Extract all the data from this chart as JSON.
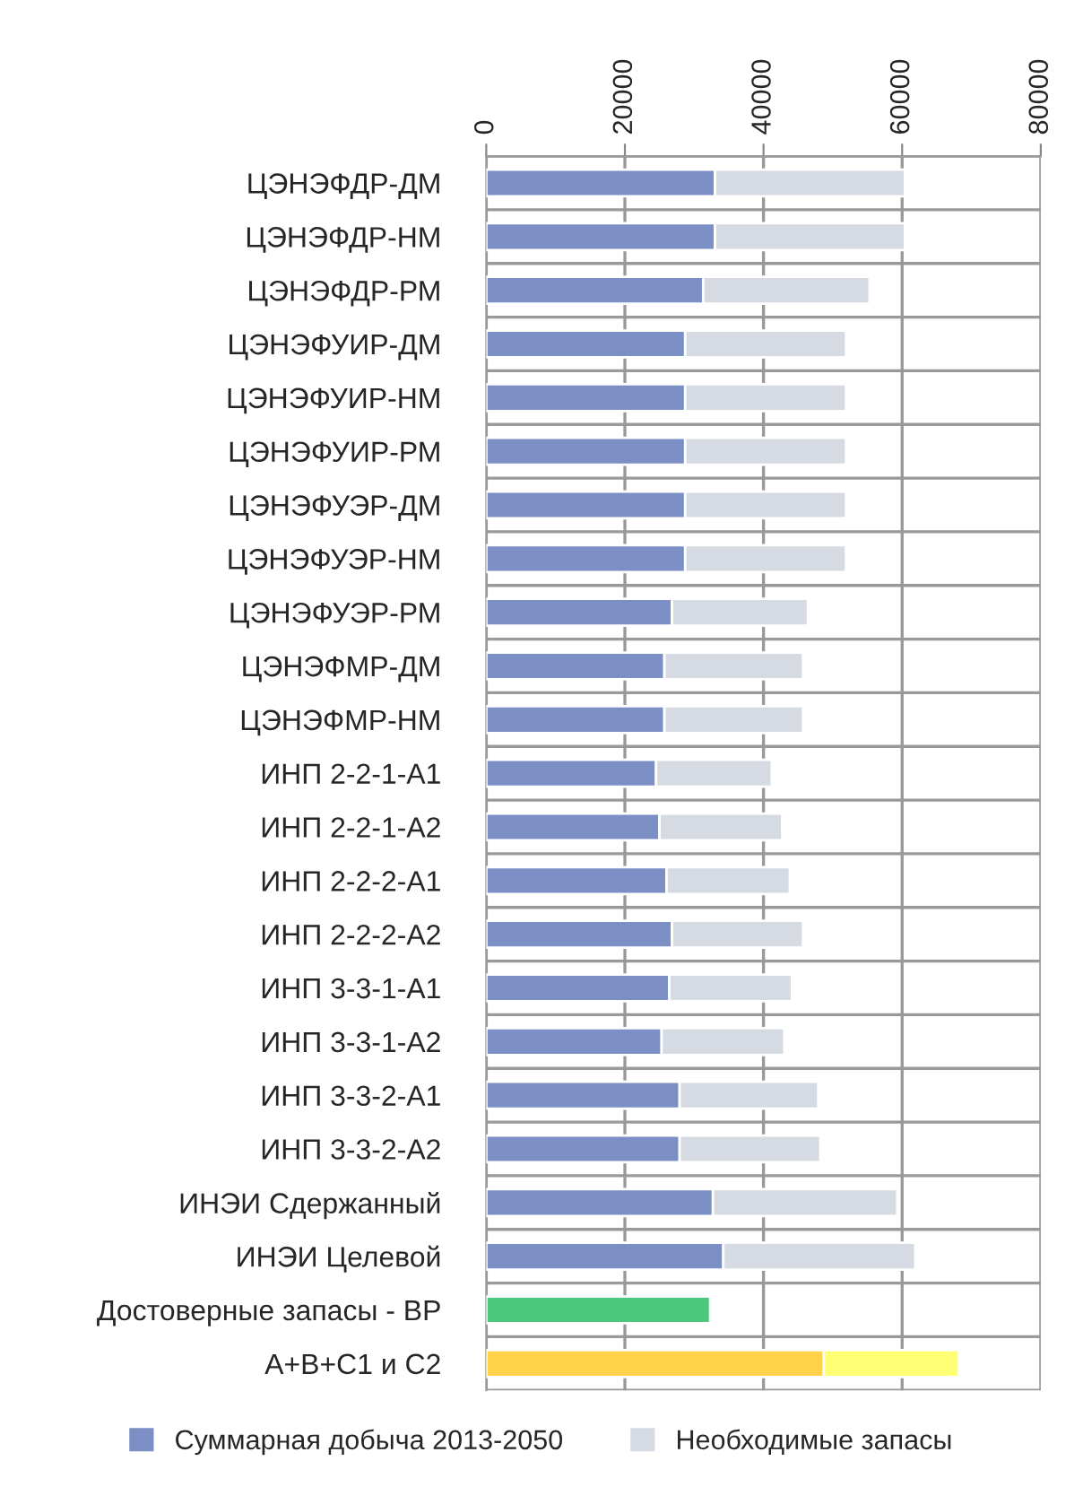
{
  "chart_data": {
    "type": "bar",
    "orientation": "horizontal",
    "stacked": true,
    "categories": [
      "ЦЭНЭФДР-ДМ",
      "ЦЭНЭФДР-НМ",
      "ЦЭНЭФДР-РМ",
      "ЦЭНЭФУИР-ДМ",
      "ЦЭНЭФУИР-НМ",
      "ЦЭНЭФУИР-РМ",
      "ЦЭНЭФУЭР-ДМ",
      "ЦЭНЭФУЭР-НМ",
      "ЦЭНЭФУЭР-РМ",
      "ЦЭНЭФМР-ДМ",
      "ЦЭНЭФМР-НМ",
      "ИНП 2-2-1-А1",
      "ИНП 2-2-1-А2",
      "ИНП 2-2-2-А1",
      "ИНП 2-2-2-А2",
      "ИНП 3-3-1-А1",
      "ИНП 3-3-1-А2",
      "ИНП 3-3-2-А1",
      "ИНП 3-3-2-А2",
      "ИНЭИ Сдержанный",
      "ИНЭИ Целевой",
      "Достоверные запасы - ВР",
      "А+В+С1 и С2"
    ],
    "series": [
      {
        "name": "Суммарная добыча 2013-2050",
        "color": "#7b8fc4",
        "colors": [
          "#7b8fc4",
          "#7b8fc4",
          "#7b8fc4",
          "#7b8fc4",
          "#7b8fc4",
          "#7b8fc4",
          "#7b8fc4",
          "#7b8fc4",
          "#7b8fc4",
          "#7b8fc4",
          "#7b8fc4",
          "#7b8fc4",
          "#7b8fc4",
          "#7b8fc4",
          "#7b8fc4",
          "#7b8fc4",
          "#7b8fc4",
          "#7b8fc4",
          "#7b8fc4",
          "#7b8fc4",
          "#7b8fc4",
          "#4cc77e",
          "#ffd24a"
        ],
        "values": [
          33000,
          33000,
          31300,
          28700,
          28700,
          28700,
          28700,
          28700,
          26800,
          25700,
          25700,
          24500,
          25000,
          26000,
          26800,
          26400,
          25300,
          27900,
          27900,
          32700,
          34200,
          32300,
          48700
        ]
      },
      {
        "name": "Необходимые запасы",
        "color": "#d6dbe3",
        "colors": [
          "#d6dbe3",
          "#d6dbe3",
          "#d6dbe3",
          "#d6dbe3",
          "#d6dbe3",
          "#d6dbe3",
          "#d6dbe3",
          "#d6dbe3",
          "#d6dbe3",
          "#d6dbe3",
          "#d6dbe3",
          "#d6dbe3",
          "#d6dbe3",
          "#d6dbe3",
          "#d6dbe3",
          "#d6dbe3",
          "#d6dbe3",
          "#d6dbe3",
          "#d6dbe3",
          "#d6dbe3",
          "#d6dbe3",
          "#d6dbe3",
          "#ffff73"
        ],
        "values": [
          27400,
          27400,
          24000,
          23200,
          23200,
          23200,
          23200,
          23200,
          19600,
          20000,
          20000,
          16700,
          17700,
          17800,
          18900,
          17700,
          17700,
          20000,
          20300,
          26600,
          27700,
          null,
          19500
        ]
      }
    ],
    "xlim": [
      0,
      80000
    ],
    "xticks": [
      0,
      20000,
      40000,
      60000,
      80000
    ],
    "grid": true,
    "legend": "bottom"
  }
}
